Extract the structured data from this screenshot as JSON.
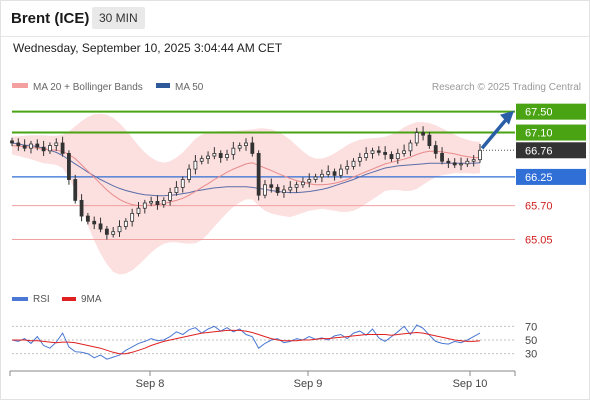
{
  "header": {
    "title": "Brent (ICE)",
    "timeframe": "30 MIN"
  },
  "datetime": "Wednesday, September 10, 2025 3:04:44 AM CET",
  "legend": {
    "ma_bb": "MA 20 + Bollinger Bands",
    "ma50": "MA 50",
    "credit": "Research © 2025 Trading Central"
  },
  "rsi_legend": {
    "rsi": "RSI",
    "ma9": "9MA"
  },
  "colors": {
    "green": "#4aa313",
    "blue": "#2f6fd6",
    "red": "#e04a4a",
    "dark": "#333333",
    "bb_fill": "#fbd4d4",
    "ma50": "#5a6ea8",
    "arrow": "#2a5fa8"
  },
  "chart_data": {
    "type": "line",
    "price": {
      "ylim": [
        64.62,
        67.8
      ],
      "x_ticks": [
        "Sep 8",
        "Sep 9",
        "Sep 10"
      ],
      "levels": [
        {
          "value": 67.5,
          "label": "67.50",
          "style": "green-solid"
        },
        {
          "value": 67.1,
          "label": "67.10",
          "style": "green-solid"
        },
        {
          "value": 66.76,
          "label": "66.76",
          "style": "last-price"
        },
        {
          "value": 66.25,
          "label": "66.25",
          "style": "blue-solid"
        },
        {
          "value": 65.7,
          "label": "65.70",
          "style": "red-thin"
        },
        {
          "value": 65.05,
          "label": "65.05",
          "style": "red-thin"
        }
      ],
      "close": [
        66.9,
        66.85,
        66.8,
        66.88,
        66.82,
        66.75,
        66.85,
        66.9,
        66.7,
        66.2,
        65.8,
        65.5,
        65.4,
        65.35,
        65.25,
        65.15,
        65.2,
        65.3,
        65.4,
        65.55,
        65.65,
        65.75,
        65.78,
        65.72,
        65.8,
        65.95,
        66.05,
        66.2,
        66.4,
        66.55,
        66.6,
        66.65,
        66.7,
        66.62,
        66.68,
        66.8,
        66.85,
        66.9,
        66.7,
        65.9,
        66.1,
        66.05,
        65.95,
        66.0,
        66.05,
        66.1,
        66.15,
        66.2,
        66.25,
        66.3,
        66.35,
        66.28,
        66.4,
        66.45,
        66.55,
        66.62,
        66.7,
        66.75,
        66.72,
        66.68,
        66.6,
        66.7,
        66.75,
        66.9,
        67.1,
        67.05,
        66.85,
        66.7,
        66.55,
        66.52,
        66.48,
        66.5,
        66.55,
        66.58,
        66.76
      ],
      "ma20": [
        66.85,
        66.84,
        66.83,
        66.82,
        66.8,
        66.78,
        66.77,
        66.76,
        66.74,
        66.68,
        66.6,
        66.48,
        66.36,
        66.24,
        66.12,
        66.0,
        65.9,
        65.82,
        65.76,
        65.72,
        65.7,
        65.7,
        65.71,
        65.72,
        65.74,
        65.77,
        65.8,
        65.84,
        65.9,
        65.97,
        66.05,
        66.12,
        66.2,
        66.27,
        66.34,
        66.4,
        66.45,
        66.5,
        66.52,
        66.47,
        66.42,
        66.37,
        66.32,
        66.27,
        66.22,
        66.18,
        66.15,
        66.12,
        66.1,
        66.1,
        66.11,
        66.13,
        66.16,
        66.2,
        66.25,
        66.3,
        66.35,
        66.4,
        66.45,
        66.5,
        66.53,
        66.56,
        66.59,
        66.63,
        66.68,
        66.72,
        66.74,
        66.74,
        66.73,
        66.71,
        66.69,
        66.66,
        66.64,
        66.62,
        66.62
      ],
      "bb_upper": [
        67.02,
        67.03,
        67.04,
        67.05,
        67.05,
        67.05,
        67.04,
        67.04,
        67.06,
        67.12,
        67.22,
        67.32,
        67.4,
        67.45,
        67.46,
        67.44,
        67.38,
        67.28,
        67.15,
        67.0,
        66.85,
        66.72,
        66.62,
        66.55,
        66.52,
        66.55,
        66.62,
        66.72,
        66.85,
        66.98,
        67.06,
        67.1,
        67.12,
        67.13,
        67.13,
        67.13,
        67.14,
        67.15,
        67.16,
        67.18,
        67.18,
        67.16,
        67.12,
        67.05,
        66.96,
        66.85,
        66.74,
        66.65,
        66.6,
        66.6,
        66.64,
        66.7,
        66.78,
        66.86,
        66.92,
        66.96,
        66.98,
        66.99,
        67.0,
        67.02,
        67.06,
        67.12,
        67.2,
        67.26,
        67.3,
        67.3,
        67.28,
        67.24,
        67.18,
        67.12,
        67.06,
        67.0,
        66.96,
        66.93,
        66.92
      ],
      "bb_lower": [
        66.68,
        66.65,
        66.62,
        66.59,
        66.55,
        66.51,
        66.5,
        66.48,
        66.42,
        66.24,
        65.98,
        65.64,
        65.32,
        65.03,
        64.78,
        64.58,
        64.43,
        64.38,
        64.4,
        64.46,
        64.56,
        64.68,
        64.8,
        64.9,
        64.97,
        65.0,
        65.0,
        64.98,
        64.97,
        64.98,
        65.04,
        65.16,
        65.3,
        65.43,
        65.56,
        65.68,
        65.76,
        65.82,
        65.82,
        65.7,
        65.6,
        65.55,
        65.52,
        65.5,
        65.48,
        65.52,
        65.56,
        65.6,
        65.62,
        65.64,
        65.62,
        65.6,
        65.58,
        65.58,
        65.6,
        65.66,
        65.74,
        65.82,
        65.9,
        65.98,
        66.0,
        66.0,
        65.98,
        65.98,
        66.02,
        66.1,
        66.18,
        66.24,
        66.28,
        66.3,
        66.32,
        66.32,
        66.32,
        66.31,
        66.32
      ],
      "ma50": [
        66.9,
        66.88,
        66.86,
        66.85,
        66.83,
        66.8,
        66.76,
        66.72,
        66.66,
        66.58,
        66.5,
        66.42,
        66.34,
        66.27,
        66.2,
        66.14,
        66.08,
        66.03,
        65.99,
        65.96,
        65.93,
        65.91,
        65.9,
        65.89,
        65.89,
        65.9,
        65.91,
        65.93,
        65.95,
        65.98,
        66.0,
        66.02,
        66.04,
        66.05,
        66.06,
        66.06,
        66.06,
        66.06,
        66.05,
        66.03,
        66.01,
        65.99,
        65.97,
        65.96,
        65.95,
        65.95,
        65.96,
        65.97,
        65.99,
        66.01,
        66.04,
        66.08,
        66.12,
        66.16,
        66.2,
        66.25,
        66.3,
        66.34,
        66.38,
        66.42,
        66.44,
        66.46,
        66.47,
        66.48,
        66.49,
        66.5,
        66.51,
        66.51,
        66.51,
        66.51,
        66.51,
        66.51,
        66.51,
        66.51,
        66.52
      ]
    },
    "rsi": {
      "ylim": [
        15,
        85
      ],
      "ticks": [
        70,
        50,
        30
      ],
      "rsi": [
        50,
        48,
        52,
        45,
        55,
        42,
        38,
        47,
        60,
        40,
        33,
        32,
        30,
        24,
        28,
        22,
        25,
        28,
        35,
        40,
        45,
        48,
        52,
        49,
        50,
        55,
        62,
        58,
        65,
        68,
        60,
        66,
        70,
        63,
        68,
        62,
        66,
        58,
        55,
        38,
        45,
        50,
        52,
        46,
        48,
        52,
        50,
        55,
        51,
        53,
        50,
        56,
        58,
        52,
        60,
        63,
        57,
        66,
        53,
        48,
        55,
        62,
        70,
        58,
        72,
        67,
        57,
        48,
        45,
        44,
        48,
        46,
        50,
        55,
        60
      ],
      "ma9": [
        50,
        50,
        50,
        49,
        49,
        48,
        47,
        46,
        47,
        47,
        46,
        44,
        42,
        40,
        38,
        35,
        32,
        30,
        30,
        32,
        35,
        38,
        42,
        45,
        48,
        50,
        52,
        54,
        56,
        58,
        60,
        61,
        62,
        63,
        64,
        64,
        64,
        63,
        61,
        58,
        55,
        52,
        50,
        49,
        49,
        49,
        50,
        50,
        51,
        52,
        52,
        53,
        54,
        55,
        56,
        57,
        58,
        58,
        58,
        58,
        57,
        58,
        59,
        60,
        61,
        60,
        58,
        56,
        54,
        52,
        50,
        49,
        48,
        48,
        49
      ]
    }
  }
}
